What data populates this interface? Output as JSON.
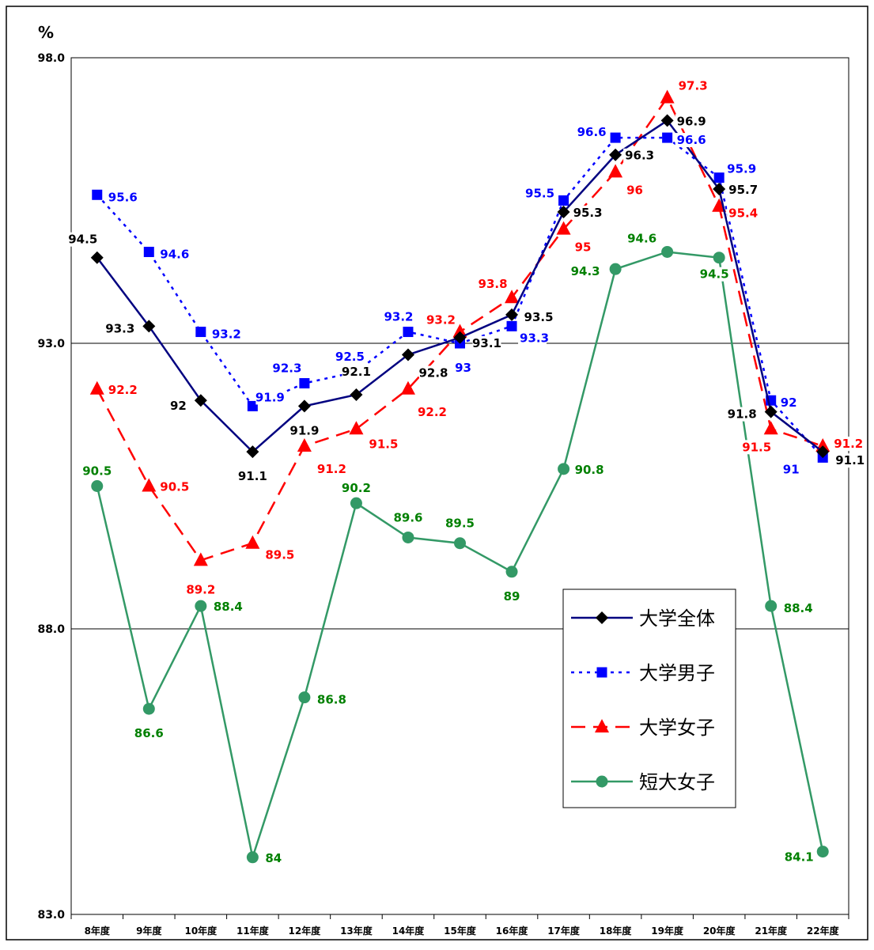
{
  "chart_data": {
    "type": "line",
    "unit_label": "%",
    "categories": [
      "8年度",
      "9年度",
      "10年度",
      "11年度",
      "12年度",
      "13年度",
      "14年度",
      "15年度",
      "16年度",
      "17年度",
      "18年度",
      "19年度",
      "20年度",
      "21年度",
      "22年度"
    ],
    "ylim": [
      83.0,
      98.0
    ],
    "yticks": [
      "83.0",
      "88.0",
      "93.0",
      "98.0"
    ],
    "grid": true,
    "legend_position": "right",
    "series": [
      {
        "name": "大学全体",
        "color": "#000080",
        "marker_color": "#000000",
        "marker": "diamond",
        "dash": "solid",
        "label_color": "#000000",
        "values": [
          94.5,
          93.3,
          92.0,
          91.1,
          91.9,
          92.1,
          92.8,
          93.1,
          93.5,
          95.3,
          96.3,
          96.9,
          95.7,
          91.8,
          91.1
        ]
      },
      {
        "name": "大学男子",
        "color": "#0000FF",
        "marker_color": "#0000FF",
        "marker": "square",
        "dash": "dotted",
        "label_color": "#0000FF",
        "values": [
          95.6,
          94.6,
          93.2,
          91.9,
          92.3,
          92.5,
          93.2,
          93.0,
          93.3,
          95.5,
          96.6,
          96.6,
          95.9,
          92.0,
          91.0
        ]
      },
      {
        "name": "大学女子",
        "color": "#FF0000",
        "marker_color": "#FF0000",
        "marker": "triangle",
        "dash": "dashed",
        "label_color": "#FF0000",
        "values": [
          92.2,
          90.5,
          89.2,
          89.5,
          91.2,
          91.5,
          92.2,
          93.2,
          93.8,
          95.0,
          96.0,
          97.3,
          95.4,
          91.5,
          91.2
        ]
      },
      {
        "name": "短大女子",
        "color": "#339966",
        "marker_color": "#339966",
        "marker": "circle",
        "dash": "solid",
        "label_color": "#008000",
        "values": [
          90.5,
          86.6,
          88.4,
          84.0,
          86.8,
          90.2,
          89.6,
          89.5,
          89.0,
          90.8,
          94.3,
          94.6,
          94.5,
          88.4,
          84.1
        ]
      }
    ]
  }
}
